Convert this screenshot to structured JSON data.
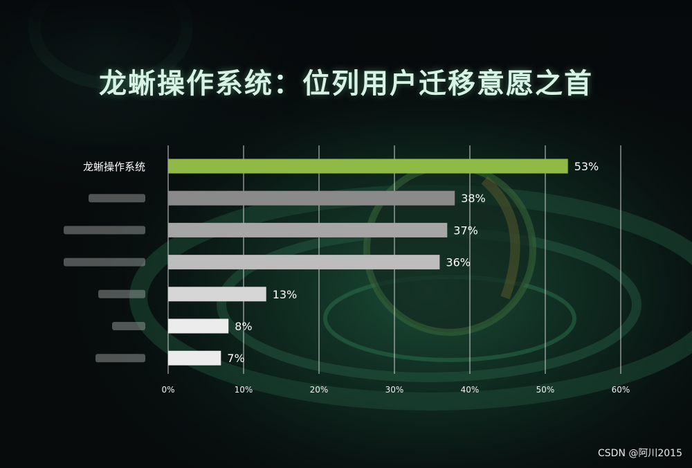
{
  "title": "龙蜥操作系统：位列用户迁移意愿之首",
  "watermark": "CSDN @阿川2015",
  "colors": {
    "highlight": "#8fba45",
    "bars": [
      "#8fba45",
      "#8a8a8a",
      "#a6a6a6",
      "#bdbdbd",
      "#d6d6d6",
      "#ececec",
      "#ececec"
    ]
  },
  "chart_data": {
    "type": "bar",
    "orientation": "horizontal",
    "categories": [
      "龙蜥操作系统",
      "",
      "",
      "",
      "",
      "",
      ""
    ],
    "values": [
      53,
      38,
      37,
      36,
      13,
      8,
      7
    ],
    "value_labels": [
      "53%",
      "38%",
      "37%",
      "36%",
      "13%",
      "8%",
      "7%"
    ],
    "xlim": [
      0,
      60
    ],
    "x_ticks": [
      0,
      10,
      20,
      30,
      40,
      50,
      60
    ],
    "x_tick_labels": [
      "0%",
      "10%",
      "20%",
      "30%",
      "40%",
      "50%",
      "60%"
    ],
    "grid": true
  }
}
